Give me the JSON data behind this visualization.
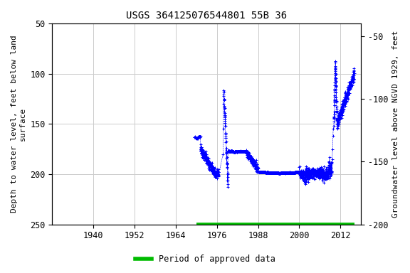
{
  "title": "USGS 364125076544801 55B 36",
  "ylabel_left": "Depth to water level, feet below land\nsurface",
  "ylabel_right": "Groundwater level above NGVD 1929, feet",
  "legend_label": "Period of approved data",
  "legend_color": "#00bb00",
  "data_color": "#0000ff",
  "xlim": [
    1928,
    2018
  ],
  "ylim_left": [
    250,
    50
  ],
  "ylim_right": [
    -200,
    -40
  ],
  "xticks": [
    1940,
    1952,
    1964,
    1976,
    1988,
    2000,
    2012
  ],
  "yticks_left": [
    50,
    100,
    150,
    200,
    250
  ],
  "yticks_right": [
    -50,
    -100,
    -150,
    -200
  ],
  "grid_color": "#cccccc",
  "background_color": "#ffffff",
  "approved_bar_xstart": 1970,
  "approved_bar_xend": 2016,
  "approved_bar_color": "#00bb00",
  "font_family": "monospace",
  "title_fontsize": 10,
  "axis_label_fontsize": 8,
  "tick_fontsize": 8.5
}
